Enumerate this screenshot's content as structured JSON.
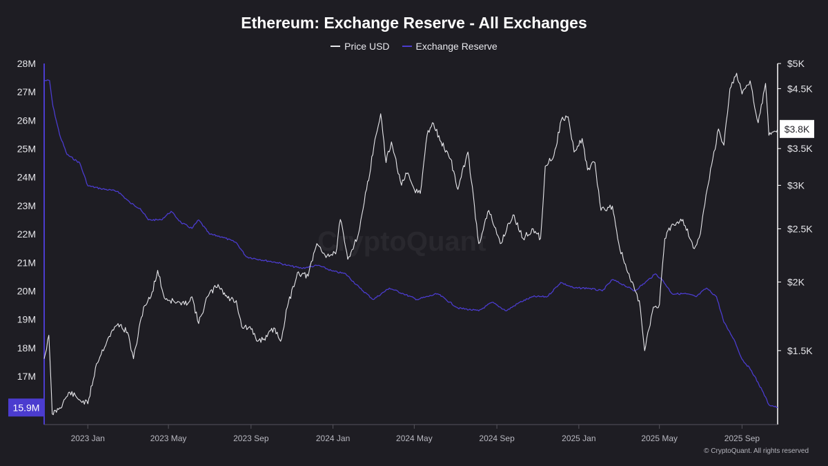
{
  "chart_data": {
    "type": "line",
    "title": "Ethereum: Exchange Reserve - All Exchanges",
    "x_ticks": [
      "2023 Jan",
      "2023 May",
      "2023 Sep",
      "2024 Jan",
      "2024 May",
      "2024 Sep",
      "2025 Jan",
      "2025 May",
      "2025 Sep"
    ],
    "x_tick_dates": [
      "2023-01-01",
      "2023-05-01",
      "2023-09-01",
      "2024-01-01",
      "2024-05-01",
      "2024-09-01",
      "2025-01-01",
      "2025-05-01",
      "2025-09-01"
    ],
    "x_range": [
      "2022-10-28",
      "2025-10-24"
    ],
    "left_axis": {
      "ticks": [
        "28M",
        "27M",
        "26M",
        "25M",
        "24M",
        "23M",
        "22M",
        "21M",
        "20M",
        "19M",
        "18M",
        "17M"
      ],
      "tick_values": [
        28,
        27,
        26,
        25,
        24,
        23,
        22,
        21,
        20,
        19,
        18,
        17
      ],
      "range": [
        15.3,
        28.0
      ],
      "unit": "M",
      "current_label": "15.9M",
      "current_value": 15.9
    },
    "right_axis": {
      "scale": "log",
      "ticks": [
        "$5K",
        "$4.5K",
        "$3.5K",
        "$3K",
        "$2.5K",
        "$2K",
        "$1.5K"
      ],
      "tick_values": [
        5000,
        4500,
        3500,
        3000,
        2500,
        2000,
        1500
      ],
      "range": [
        1100,
        5000
      ],
      "current_label": "$3.8K",
      "current_value": 3800
    },
    "series": [
      {
        "name": "Price USD",
        "axis": "right",
        "color": "#e8e8ec",
        "points": [
          [
            "2022-10-28",
            1450
          ],
          [
            "2022-11-04",
            1600
          ],
          [
            "2022-11-09",
            1150
          ],
          [
            "2022-11-20",
            1180
          ],
          [
            "2022-12-05",
            1260
          ],
          [
            "2022-12-20",
            1220
          ],
          [
            "2023-01-01",
            1200
          ],
          [
            "2023-01-14",
            1420
          ],
          [
            "2023-01-31",
            1580
          ],
          [
            "2023-02-15",
            1680
          ],
          [
            "2023-03-01",
            1620
          ],
          [
            "2023-03-10",
            1450
          ],
          [
            "2023-03-25",
            1800
          ],
          [
            "2023-04-05",
            1880
          ],
          [
            "2023-04-15",
            2100
          ],
          [
            "2023-04-25",
            1870
          ],
          [
            "2023-05-10",
            1840
          ],
          [
            "2023-05-25",
            1820
          ],
          [
            "2023-06-05",
            1880
          ],
          [
            "2023-06-15",
            1680
          ],
          [
            "2023-06-28",
            1880
          ],
          [
            "2023-07-14",
            1980
          ],
          [
            "2023-07-28",
            1870
          ],
          [
            "2023-08-10",
            1850
          ],
          [
            "2023-08-18",
            1660
          ],
          [
            "2023-09-01",
            1640
          ],
          [
            "2023-09-11",
            1560
          ],
          [
            "2023-09-25",
            1590
          ],
          [
            "2023-10-05",
            1650
          ],
          [
            "2023-10-15",
            1560
          ],
          [
            "2023-10-25",
            1800
          ],
          [
            "2023-11-09",
            2080
          ],
          [
            "2023-11-25",
            2050
          ],
          [
            "2023-12-08",
            2350
          ],
          [
            "2023-12-20",
            2240
          ],
          [
            "2024-01-05",
            2250
          ],
          [
            "2024-01-12",
            2600
          ],
          [
            "2024-01-23",
            2200
          ],
          [
            "2024-02-08",
            2450
          ],
          [
            "2024-02-20",
            2950
          ],
          [
            "2024-03-05",
            3700
          ],
          [
            "2024-03-12",
            4050
          ],
          [
            "2024-03-20",
            3300
          ],
          [
            "2024-03-28",
            3600
          ],
          [
            "2024-04-12",
            3000
          ],
          [
            "2024-04-20",
            3150
          ],
          [
            "2024-05-01",
            2950
          ],
          [
            "2024-05-10",
            2900
          ],
          [
            "2024-05-20",
            3700
          ],
          [
            "2024-05-28",
            3900
          ],
          [
            "2024-06-10",
            3600
          ],
          [
            "2024-06-24",
            3350
          ],
          [
            "2024-07-05",
            2950
          ],
          [
            "2024-07-20",
            3450
          ],
          [
            "2024-08-05",
            2350
          ],
          [
            "2024-08-20",
            2700
          ],
          [
            "2024-09-06",
            2350
          ],
          [
            "2024-09-25",
            2650
          ],
          [
            "2024-10-10",
            2400
          ],
          [
            "2024-10-25",
            2500
          ],
          [
            "2024-11-05",
            2400
          ],
          [
            "2024-11-12",
            3250
          ],
          [
            "2024-11-25",
            3400
          ],
          [
            "2024-12-06",
            3950
          ],
          [
            "2024-12-16",
            4000
          ],
          [
            "2024-12-25",
            3450
          ],
          [
            "2025-01-06",
            3650
          ],
          [
            "2025-01-14",
            3200
          ],
          [
            "2025-01-25",
            3300
          ],
          [
            "2025-02-03",
            2700
          ],
          [
            "2025-02-20",
            2750
          ],
          [
            "2025-03-03",
            2300
          ],
          [
            "2025-03-20",
            2000
          ],
          [
            "2025-04-01",
            1850
          ],
          [
            "2025-04-09",
            1500
          ],
          [
            "2025-04-22",
            1800
          ],
          [
            "2025-05-01",
            1820
          ],
          [
            "2025-05-09",
            2400
          ],
          [
            "2025-05-20",
            2550
          ],
          [
            "2025-06-05",
            2600
          ],
          [
            "2025-06-22",
            2300
          ],
          [
            "2025-07-01",
            2450
          ],
          [
            "2025-07-11",
            2950
          ],
          [
            "2025-07-28",
            3800
          ],
          [
            "2025-08-05",
            3550
          ],
          [
            "2025-08-14",
            4500
          ],
          [
            "2025-08-24",
            4800
          ],
          [
            "2025-09-01",
            4400
          ],
          [
            "2025-09-13",
            4650
          ],
          [
            "2025-09-25",
            3900
          ],
          [
            "2025-10-06",
            4600
          ],
          [
            "2025-10-11",
            3700
          ],
          [
            "2025-10-24",
            3800
          ]
        ]
      },
      {
        "name": "Exchange Reserve",
        "axis": "left",
        "color": "#4b3ccf",
        "points": [
          [
            "2022-10-28",
            27.4
          ],
          [
            "2022-11-05",
            27.4
          ],
          [
            "2022-11-10",
            26.5
          ],
          [
            "2022-11-20",
            25.5
          ],
          [
            "2022-12-01",
            24.8
          ],
          [
            "2022-12-20",
            24.5
          ],
          [
            "2023-01-01",
            23.7
          ],
          [
            "2023-01-20",
            23.6
          ],
          [
            "2023-02-15",
            23.5
          ],
          [
            "2023-03-05",
            23.1
          ],
          [
            "2023-03-20",
            22.9
          ],
          [
            "2023-04-01",
            22.5
          ],
          [
            "2023-04-20",
            22.5
          ],
          [
            "2023-05-05",
            22.8
          ],
          [
            "2023-05-20",
            22.4
          ],
          [
            "2023-06-05",
            22.2
          ],
          [
            "2023-06-15",
            22.5
          ],
          [
            "2023-07-01",
            22.0
          ],
          [
            "2023-07-20",
            21.9
          ],
          [
            "2023-08-10",
            21.7
          ],
          [
            "2023-08-25",
            21.2
          ],
          [
            "2023-09-15",
            21.1
          ],
          [
            "2023-10-10",
            21.0
          ],
          [
            "2023-10-25",
            20.9
          ],
          [
            "2023-11-15",
            20.8
          ],
          [
            "2023-12-10",
            20.9
          ],
          [
            "2023-12-31",
            20.7
          ],
          [
            "2024-01-20",
            20.6
          ],
          [
            "2024-02-10",
            20.1
          ],
          [
            "2024-03-01",
            19.7
          ],
          [
            "2024-03-25",
            20.1
          ],
          [
            "2024-04-15",
            19.9
          ],
          [
            "2024-05-05",
            19.7
          ],
          [
            "2024-06-05",
            19.9
          ],
          [
            "2024-07-05",
            19.4
          ],
          [
            "2024-08-05",
            19.3
          ],
          [
            "2024-08-25",
            19.6
          ],
          [
            "2024-09-15",
            19.3
          ],
          [
            "2024-10-05",
            19.6
          ],
          [
            "2024-10-25",
            19.8
          ],
          [
            "2024-11-15",
            19.8
          ],
          [
            "2024-12-05",
            20.3
          ],
          [
            "2024-12-25",
            20.1
          ],
          [
            "2025-01-15",
            20.1
          ],
          [
            "2025-02-05",
            20.0
          ],
          [
            "2025-02-20",
            20.4
          ],
          [
            "2025-03-10",
            20.2
          ],
          [
            "2025-03-25",
            20.0
          ],
          [
            "2025-04-10",
            20.3
          ],
          [
            "2025-04-25",
            20.6
          ],
          [
            "2025-05-05",
            20.4
          ],
          [
            "2025-05-20",
            19.9
          ],
          [
            "2025-06-10",
            19.9
          ],
          [
            "2025-06-25",
            19.8
          ],
          [
            "2025-07-10",
            20.1
          ],
          [
            "2025-07-25",
            19.8
          ],
          [
            "2025-08-05",
            18.9
          ],
          [
            "2025-08-20",
            18.3
          ],
          [
            "2025-09-01",
            17.6
          ],
          [
            "2025-09-15",
            17.2
          ],
          [
            "2025-10-01",
            16.5
          ],
          [
            "2025-10-11",
            16.0
          ],
          [
            "2025-10-24",
            15.9
          ]
        ]
      }
    ],
    "legend_placement": "top-center",
    "grid": false
  },
  "footer": "© CryptoQuant. All rights reserved",
  "watermark": "CryptoQuant",
  "colors": {
    "background": "#1e1d23",
    "price_line": "#e8e8ec",
    "reserve_line": "#4b3ccf",
    "reserve_badge": "#4b3ccf",
    "price_badge": "#ffffff"
  }
}
